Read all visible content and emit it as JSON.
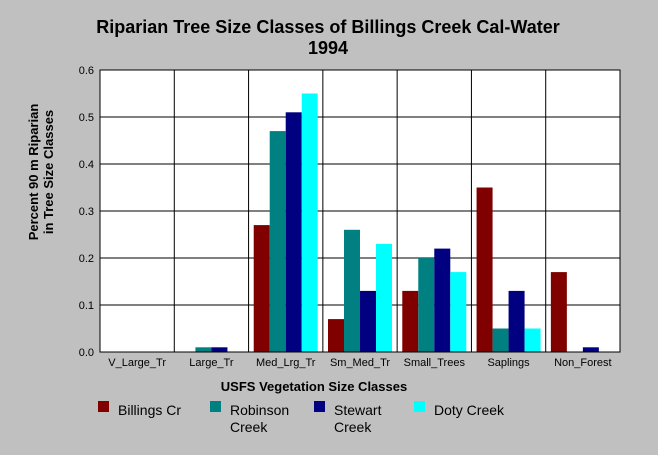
{
  "chart_data": {
    "type": "bar",
    "title_lines": [
      "Riparian Tree Size Classes of Billings Creek Cal-Water",
      "1994"
    ],
    "xlabel": "USFS Vegetation Size Classes",
    "ylabel_lines": [
      "Percent 90 m Riparian",
      "in Tree Size Classes"
    ],
    "ylim": [
      0,
      0.6
    ],
    "yticks": [
      "0.0",
      "0.1",
      "0.2",
      "0.3",
      "0.4",
      "0.5",
      "0.6"
    ],
    "grid": true,
    "legend_position": "bottom",
    "categories": [
      "V_Large_Tr",
      "Large_Tr",
      "Med_Lrg_Tr",
      "Sm_Med_Tr",
      "Small_Trees",
      "Saplings",
      "Non_Forest"
    ],
    "series": [
      {
        "name": "Billings Cr",
        "legend_lines": [
          "Billings Cr"
        ],
        "color": "#800000",
        "values": [
          0,
          0,
          0.27,
          0.07,
          0.13,
          0.35,
          0.17
        ]
      },
      {
        "name": "Robinson Creek",
        "legend_lines": [
          "Robinson",
          "Creek"
        ],
        "color": "#008080",
        "values": [
          0,
          0.01,
          0.47,
          0.26,
          0.2,
          0.05,
          0
        ]
      },
      {
        "name": "Stewart Creek",
        "legend_lines": [
          "Stewart",
          "Creek"
        ],
        "color": "#000080",
        "values": [
          0,
          0.01,
          0.51,
          0.13,
          0.22,
          0.13,
          0.01
        ]
      },
      {
        "name": "Doty Creek",
        "legend_lines": [
          "Doty Creek"
        ],
        "color": "#00ffff",
        "values": [
          0,
          0,
          0.55,
          0.23,
          0.17,
          0.05,
          0
        ]
      }
    ]
  }
}
